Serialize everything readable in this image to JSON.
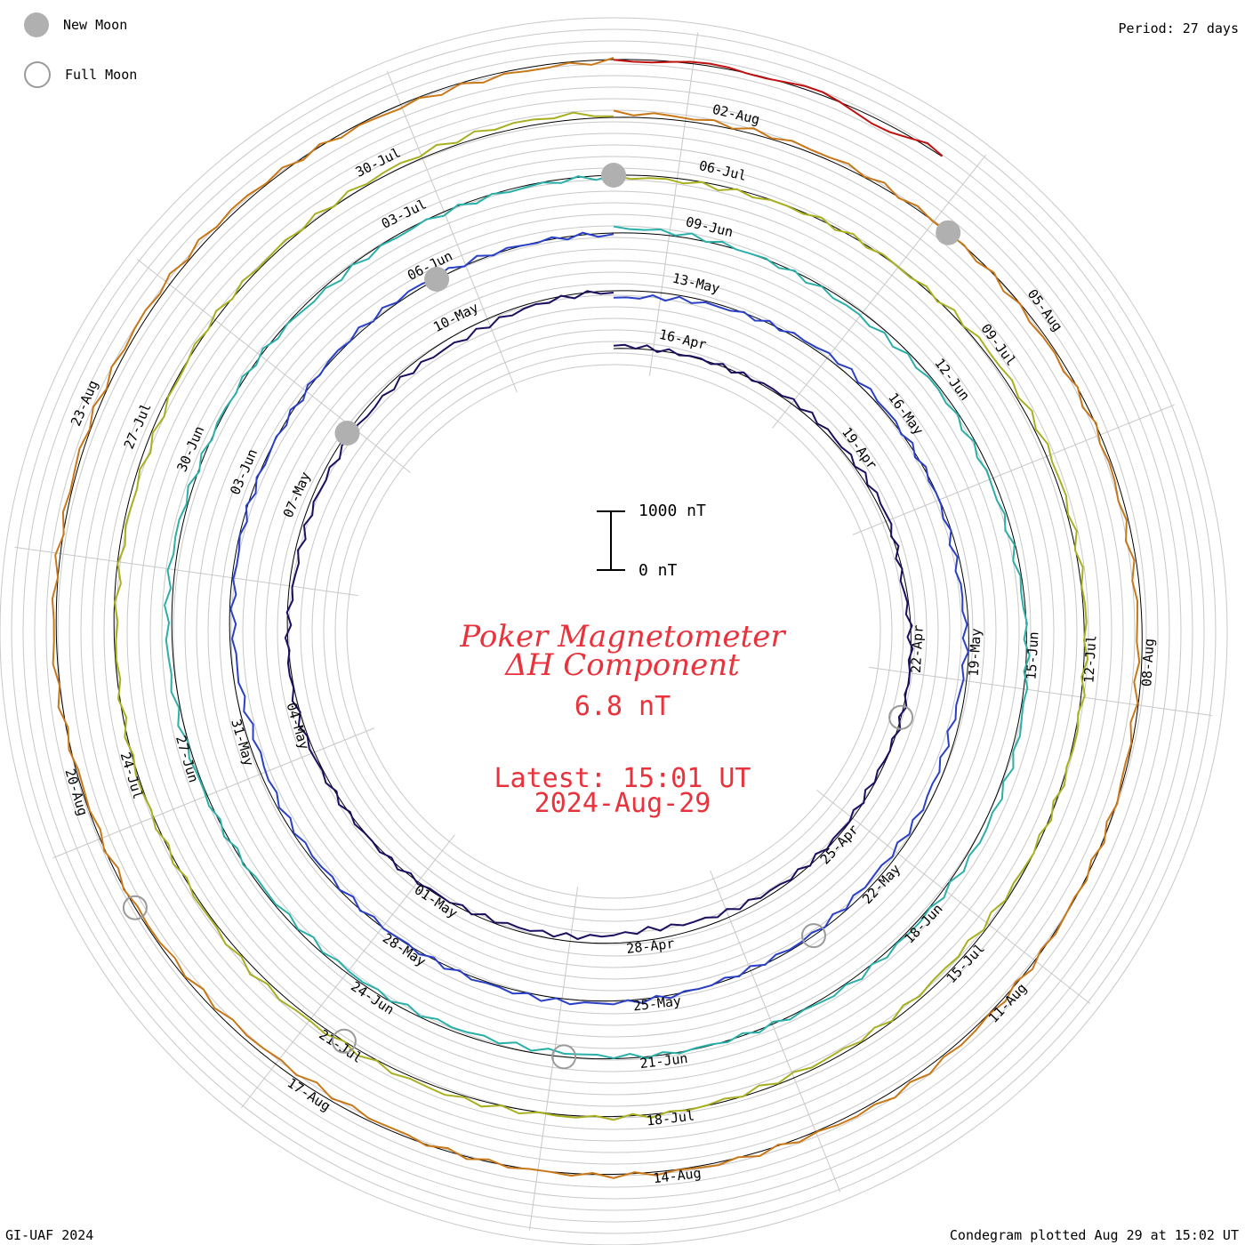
{
  "legend": {
    "new_moon_label": "New Moon",
    "full_moon_label": "Full Moon",
    "new_moon_color": "#b0b0b0",
    "full_moon_color": "#9a9a9a"
  },
  "header": {
    "period": "Period: 27 days"
  },
  "footer": {
    "credit": "GI-UAF 2024",
    "plotted": "Condegram plotted Aug 29 at 15:02 UT"
  },
  "center": {
    "title_line1": "Poker Magnetometer",
    "title_line2": "ΔH Component",
    "current_value": "6.8 nT",
    "latest_time": "Latest: 15:01 UT",
    "latest_date": "2024-Aug-29",
    "accent_color": "#e8323c"
  },
  "chart_data": {
    "type": "line",
    "subtype": "condegram spiral",
    "title": "Poker Magnetometer ΔH Component",
    "period_days": 27,
    "scale_bar": {
      "top_label": "1000 nT",
      "bottom_label": "0 nT",
      "value_nT": 1000
    },
    "spokes_count": 12,
    "axis_tick_labels": [
      "16-Apr",
      "19-Apr",
      "22-Apr",
      "25-Apr",
      "28-Apr",
      "01-May",
      "04-May",
      "07-May",
      "10-May",
      "13-May",
      "16-May",
      "19-May",
      "22-May",
      "25-May",
      "28-May",
      "31-May",
      "03-Jun",
      "06-Jun",
      "09-Jun",
      "12-Jun",
      "15-Jun",
      "18-Jun",
      "21-Jun",
      "24-Jun",
      "27-Jun",
      "30-Jun",
      "03-Jul",
      "06-Jul",
      "09-Jul",
      "12-Jul",
      "15-Jul",
      "18-Jul",
      "21-Jul",
      "24-Jul",
      "27-Jul",
      "30-Jul",
      "02-Aug",
      "05-Aug",
      "08-Aug",
      "11-Aug",
      "14-Aug",
      "17-Aug",
      "20-Aug",
      "23-Aug"
    ],
    "series": [
      {
        "period": "2024-Apr-15 to 2024-May-11",
        "color": "#1a1060",
        "start_day": 0,
        "end_day": 27,
        "values": [
          50,
          40,
          60,
          120,
          90,
          70,
          -80,
          -60,
          -50,
          -90,
          -40,
          -30,
          -60,
          -120,
          -40,
          -30,
          -20,
          -30,
          -40,
          -10,
          -20,
          -80,
          -40,
          -30,
          -20,
          -90,
          -40,
          -30
        ]
      },
      {
        "period": "2024-May-11 to 2024-Jun-07",
        "color": "#2a40c8",
        "start_day": 27,
        "end_day": 54,
        "values": [
          -100,
          -60,
          -40,
          20,
          -30,
          -50,
          -80,
          -20,
          -60,
          -10,
          -40,
          -20,
          -50,
          -30,
          -10,
          -20,
          -20,
          -30,
          -10,
          -60,
          -20,
          -10,
          -20,
          -40,
          -20,
          -10,
          -30,
          -20
        ]
      },
      {
        "period": "2024-Jun-07 to 2024-Jul-04",
        "color": "#2ab0a8",
        "start_day": 54,
        "end_day": 81,
        "values": [
          30,
          10,
          -20,
          -40,
          20,
          -10,
          -20,
          10,
          30,
          20,
          -30,
          10,
          -10,
          20,
          -20,
          -10,
          10,
          -40,
          -20,
          -10,
          20,
          30,
          -10,
          20,
          -20,
          40,
          30,
          10
        ]
      },
      {
        "period": "2024-Jul-04 to 2024-Jul-31",
        "color": "#a8b020",
        "start_day": 81,
        "end_day": 108,
        "values": [
          20,
          10,
          30,
          -10,
          20,
          10,
          -20,
          -10,
          20,
          10,
          -30,
          10,
          -20,
          20,
          -10,
          10,
          -20,
          30,
          -10,
          40,
          20,
          10,
          -20,
          60,
          20,
          10,
          30,
          20
        ]
      },
      {
        "period": "2024-Jul-31 to 2024-Aug-27",
        "color": "#c87818",
        "start_day": 108,
        "end_day": 135,
        "values": [
          20,
          -10,
          10,
          -20,
          -30,
          20,
          -10,
          -20,
          10,
          -10,
          -20,
          20,
          -30,
          -10,
          10,
          20,
          -40,
          -10,
          20,
          -20,
          30,
          -20,
          -10,
          20,
          40,
          -20,
          -10,
          30
        ]
      },
      {
        "period": "2024-Aug-27 to 2024-Aug-29",
        "color": "#c01010",
        "start_day": 135,
        "end_day": 137.6,
        "values": [
          -20,
          40,
          -30,
          10
        ]
      }
    ],
    "new_moon_markers": [
      "2024-May-08",
      "2024-Jun-06",
      "2024-Jul-05",
      "2024-Aug-04"
    ],
    "full_moon_markers": [
      "2024-Apr-23",
      "2024-May-23",
      "2024-Jun-22",
      "2024-Jul-21",
      "2024-Aug-19"
    ],
    "grid": true
  }
}
